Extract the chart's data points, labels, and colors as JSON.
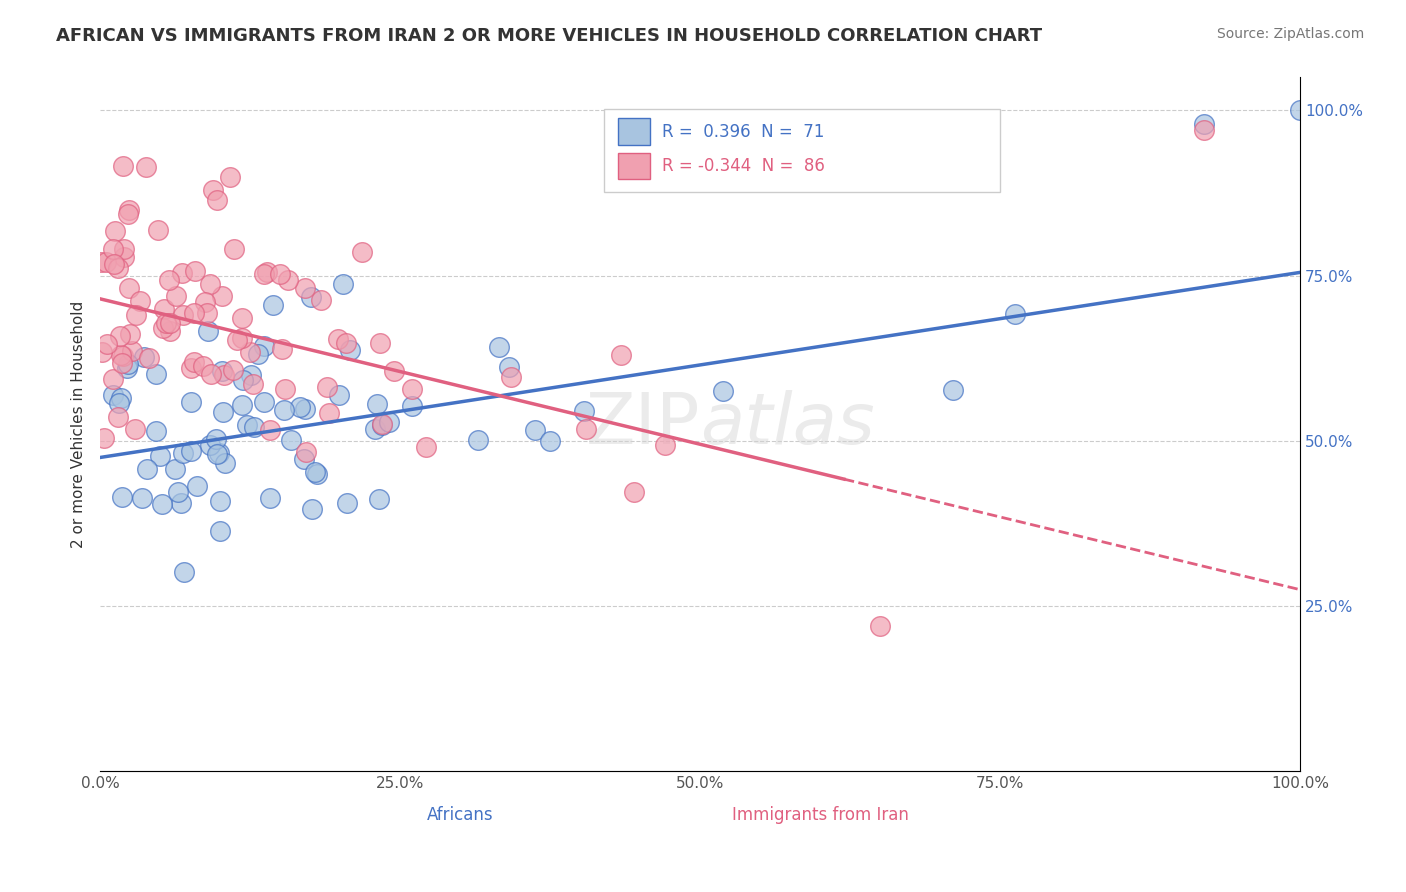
{
  "title": "AFRICAN VS IMMIGRANTS FROM IRAN 2 OR MORE VEHICLES IN HOUSEHOLD CORRELATION CHART",
  "source": "Source: ZipAtlas.com",
  "ylabel": "2 or more Vehicles in Household",
  "xlim": [
    0.0,
    1.0
  ],
  "ylim": [
    0.0,
    1.05
  ],
  "xtick_labels": [
    "0.0%",
    "25.0%",
    "50.0%",
    "75.0%",
    "100.0%"
  ],
  "xtick_vals": [
    0.0,
    0.25,
    0.5,
    0.75,
    1.0
  ],
  "ytick_labels": [
    "25.0%",
    "50.0%",
    "75.0%",
    "100.0%"
  ],
  "ytick_vals": [
    0.25,
    0.5,
    0.75,
    1.0
  ],
  "africans_R": 0.396,
  "africans_N": 71,
  "iran_R": -0.344,
  "iran_N": 86,
  "blue_color": "#a8c4e0",
  "pink_color": "#f0a0b0",
  "blue_line_color": "#4472c4",
  "pink_line_color": "#e06080",
  "blue_slope": 0.28,
  "blue_intercept": 0.475,
  "pink_slope": -0.44,
  "pink_intercept": 0.715,
  "pink_dash_split": 0.62,
  "grid_color": "#cccccc",
  "watermark_part1": "ZIP",
  "watermark_part2": "atlas"
}
